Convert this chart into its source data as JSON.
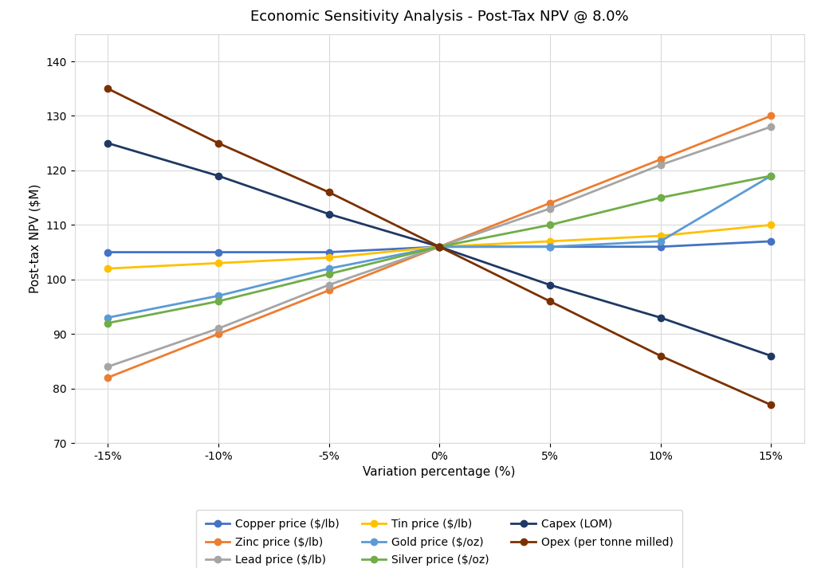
{
  "title": "Economic Sensitivity Analysis - Post-Tax NPV @ 8.0%",
  "xlabel": "Variation percentage (%)",
  "ylabel": "Post-tax NPV ($M)",
  "x_values": [
    -15,
    -10,
    -5,
    0,
    5,
    10,
    15
  ],
  "x_labels": [
    "-15%",
    "-10%",
    "-5%",
    "0%",
    "5%",
    "10%",
    "15%"
  ],
  "ylim": [
    70,
    145
  ],
  "yticks": [
    70,
    80,
    90,
    100,
    110,
    120,
    130,
    140
  ],
  "series": [
    {
      "label": "Copper price ($/lb)",
      "color": "#4472C4",
      "values": [
        105,
        105,
        105,
        106,
        106,
        106,
        107
      ]
    },
    {
      "label": "Zinc price ($/lb)",
      "color": "#ED7D31",
      "values": [
        82,
        90,
        98,
        106,
        114,
        122,
        130
      ]
    },
    {
      "label": "Lead price ($/lb)",
      "color": "#A5A5A5",
      "values": [
        84,
        91,
        99,
        106,
        113,
        121,
        128
      ]
    },
    {
      "label": "Tin price ($/lb)",
      "color": "#FFC000",
      "values": [
        102,
        103,
        104,
        106,
        107,
        108,
        110
      ]
    },
    {
      "label": "Gold price ($/oz)",
      "color": "#5B9BD5",
      "values": [
        93,
        97,
        102,
        106,
        106,
        107,
        119
      ]
    },
    {
      "label": "Silver price ($/oz)",
      "color": "#70AD47",
      "values": [
        92,
        96,
        101,
        106,
        110,
        115,
        119
      ]
    },
    {
      "label": "Capex (LOM)",
      "color": "#1F3864",
      "values": [
        125,
        119,
        112,
        106,
        99,
        93,
        86
      ]
    },
    {
      "label": "Opex (per tonne milled)",
      "color": "#7B3000",
      "values": [
        135,
        125,
        116,
        106,
        96,
        86,
        77
      ]
    }
  ],
  "fig_bg_color": "#FFFFFF",
  "plot_bg_color": "#FFFFFF",
  "grid_color": "#D9D9D9",
  "border_color": "#D9D9D9",
  "title_fontsize": 13,
  "axis_label_fontsize": 11,
  "tick_fontsize": 10,
  "legend_fontsize": 10,
  "legend_order": [
    0,
    1,
    2,
    3,
    4,
    5,
    6,
    7
  ]
}
